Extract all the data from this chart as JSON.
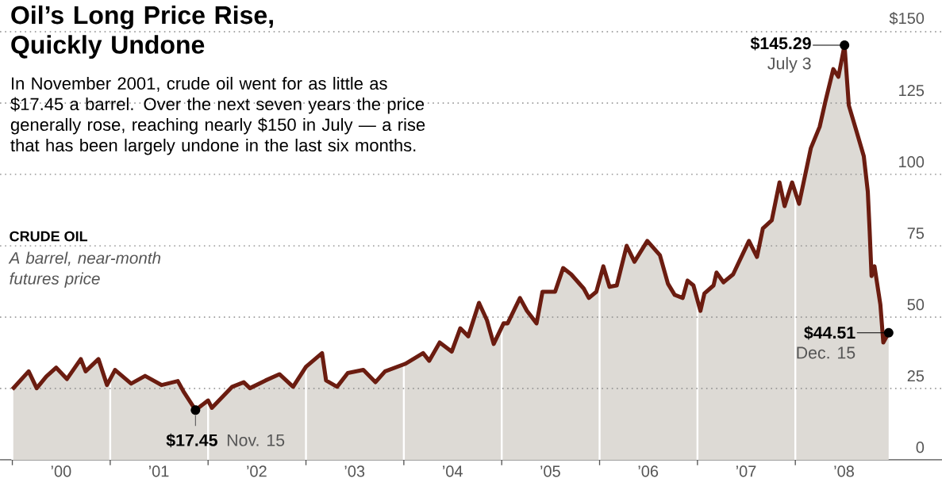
{
  "chart_data": {
    "type": "area",
    "title": "Oil’s Long Price Rise, Quickly Undone",
    "subtitle": "In November 2001, crude oil went for as little as $17.45 a barrel. Over the next seven years the price generally rose, reaching nearly $150 in July — a rise that has been largely undone in the last six months.",
    "ylabel": "CRUDE OIL",
    "annotations": [
      "A barrel, near-month futures price",
      {
        "text": "$17.45",
        "x": "2001-11-15",
        "y": 17.45
      },
      {
        "text": "Nov. 15",
        "x": "2001-11-15",
        "y": 17.45
      },
      {
        "text": "$145.29",
        "x": "2008-07-03",
        "y": 145.29
      },
      {
        "text": "July 3",
        "x": "2008-07-03",
        "y": 145.29
      },
      {
        "text": "$44.51",
        "x": "2008-12-15",
        "y": 44.51
      },
      {
        "text": "Dec. 15",
        "x": "2008-12-15",
        "y": 44.51
      }
    ],
    "x": [
      "2000-01-01",
      "2000-03-02",
      "2000-04-01",
      "2000-05-07",
      "2000-06-13",
      "2000-07-23",
      "2000-09-13",
      "2000-10-01",
      "2000-11-18",
      "2000-12-20",
      "2001-01-19",
      "2001-03-20",
      "2001-05-11",
      "2001-07-12",
      "2001-09-10",
      "2001-10-01",
      "2001-11-15",
      "2002-01-01",
      "2002-01-15",
      "2002-04-01",
      "2002-05-14",
      "2002-06-06",
      "2002-08-03",
      "2002-09-24",
      "2002-11-14",
      "2003-01-01",
      "2003-03-02",
      "2003-03-17",
      "2003-04-27",
      "2003-06-06",
      "2003-08-03",
      "2003-09-17",
      "2003-10-23",
      "2004-01-08",
      "2004-03-13",
      "2004-04-05",
      "2004-05-14",
      "2004-06-28",
      "2004-07-30",
      "2004-08-29",
      "2004-10-08",
      "2004-11-07",
      "2004-12-02",
      "2005-01-08",
      "2005-01-23",
      "2005-03-10",
      "2005-04-05",
      "2005-05-11",
      "2005-06-02",
      "2005-07-19",
      "2005-08-18",
      "2005-09-17",
      "2005-11-03",
      "2005-11-22",
      "2005-12-20",
      "2006-01-15",
      "2006-02-07",
      "2006-03-06",
      "2006-04-12",
      "2006-05-11",
      "2006-06-28",
      "2006-08-14",
      "2006-09-13",
      "2006-10-08",
      "2006-11-07",
      "2006-11-25",
      "2006-12-17",
      "2007-01-12",
      "2007-01-27",
      "2007-03-02",
      "2007-03-13",
      "2007-04-08",
      "2007-05-14",
      "2007-07-12",
      "2007-08-11",
      "2007-09-02",
      "2007-10-05",
      "2007-11-03",
      "2007-11-22",
      "2007-12-20",
      "2008-01-15",
      "2008-02-28",
      "2008-04-01",
      "2008-04-23",
      "2008-05-22",
      "2008-06-10",
      "2008-07-03",
      "2008-07-19",
      "2008-08-18",
      "2008-09-13",
      "2008-09-28",
      "2008-10-05",
      "2008-10-12",
      "2008-10-23",
      "2008-11-14",
      "2008-11-25",
      "2008-12-15"
    ],
    "values": [
      24.7,
      31.0,
      25.1,
      29.2,
      32.3,
      28.3,
      35.3,
      31.0,
      35.3,
      26.2,
      31.5,
      26.7,
      29.4,
      26.2,
      27.6,
      24.0,
      17.45,
      20.8,
      18.2,
      25.6,
      27.2,
      25.1,
      27.8,
      30.0,
      25.6,
      32.6,
      37.4,
      27.8,
      25.6,
      30.4,
      31.5,
      27.2,
      31.0,
      33.7,
      37.4,
      34.7,
      41.1,
      37.9,
      46.1,
      43.3,
      55.0,
      48.9,
      40.6,
      47.8,
      47.8,
      56.7,
      52.2,
      47.8,
      58.9,
      58.9,
      67.2,
      65.0,
      60.0,
      56.7,
      58.9,
      67.8,
      60.6,
      61.1,
      75.0,
      69.4,
      76.7,
      71.7,
      61.7,
      57.8,
      56.7,
      62.8,
      61.1,
      52.2,
      58.3,
      61.1,
      65.6,
      62.2,
      65.0,
      76.7,
      71.1,
      81.1,
      83.9,
      97.2,
      88.9,
      97.2,
      89.7,
      109.2,
      116.7,
      125.8,
      136.9,
      134.2,
      145.29,
      124.2,
      114.7,
      106.4,
      94.0,
      80.0,
      64.4,
      67.8,
      54.4,
      41.1,
      44.51
    ],
    "color": "#6b1c10",
    "xlim": [
      "1999-11-16",
      "2009-07-02"
    ],
    "ylim": [
      0,
      150
    ],
    "xticks": [
      {
        "value": "2000-01-01",
        "label": null
      },
      {
        "value": "2001-01-01",
        "label": null
      },
      {
        "value": "2002-01-01",
        "label": null
      },
      {
        "value": "2003-01-01",
        "label": null
      },
      {
        "value": "2004-01-01",
        "label": null
      },
      {
        "value": "2005-01-01",
        "label": null
      },
      {
        "value": "2006-01-01",
        "label": null
      },
      {
        "value": "2007-01-01",
        "label": null
      },
      {
        "value": "2008-01-01",
        "label": null
      },
      {
        "value": "2000-07-01",
        "label": "’00"
      },
      {
        "value": "2001-07-01",
        "label": "’01"
      },
      {
        "value": "2002-07-01",
        "label": "’02"
      },
      {
        "value": "2003-07-01",
        "label": "’03"
      },
      {
        "value": "2004-07-01",
        "label": "’04"
      },
      {
        "value": "2005-07-01",
        "label": "’05"
      },
      {
        "value": "2006-07-01",
        "label": "’06"
      },
      {
        "value": "2007-07-01",
        "label": "’07"
      },
      {
        "value": "2008-07-01",
        "label": "’08"
      }
    ],
    "yticks": [
      0,
      25,
      50,
      75,
      100,
      125,
      {
        "value": 150,
        "label": "$150"
      }
    ],
    "grid": true
  }
}
